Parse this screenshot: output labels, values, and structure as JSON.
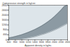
{
  "chart_data": {
    "type": "area",
    "xlabel": "Apparent density in kg/m³",
    "ylabel": "Compressive strength in kg/cm²",
    "x": [
      600,
      700,
      800,
      900,
      1000,
      1100,
      1200,
      1300,
      1400,
      1500,
      1600,
      1700,
      1800,
      1900,
      2000,
      2100,
      2200,
      2300,
      2400
    ],
    "low": [
      0,
      0,
      10,
      30,
      60,
      100,
      140,
      190,
      250,
      320,
      400,
      480,
      570,
      670,
      780,
      900,
      1030,
      1170,
      1320
    ],
    "high": [
      150,
      200,
      260,
      330,
      410,
      500,
      600,
      710,
      830,
      960,
      1110,
      1270,
      1450,
      1650,
      1880,
      2130,
      2400,
      2700,
      2800
    ],
    "color": "#8c9aa3",
    "xlim": [
      600,
      2400
    ],
    "xticks": [
      600,
      800,
      1000,
      1200,
      1400,
      1600,
      1800,
      2000,
      2200,
      2400
    ],
    "ylim": [
      0,
      2800
    ],
    "yticks": [
      0,
      400,
      800,
      1200,
      1600,
      2000,
      2400,
      2800
    ],
    "grid": true
  }
}
